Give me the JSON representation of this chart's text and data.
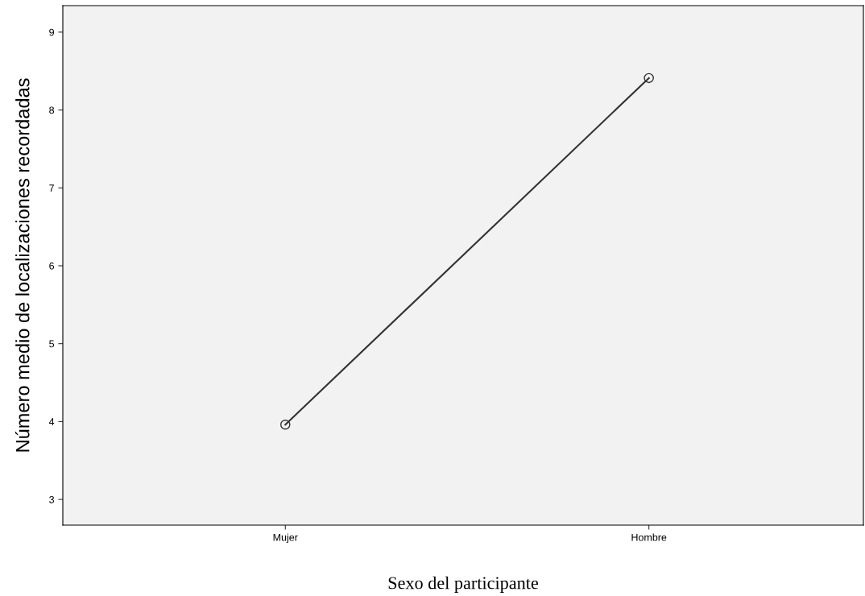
{
  "chart_data": {
    "type": "line",
    "xlabel": "Sexo del participante",
    "ylabel": "Número medio de localizaciones recordadas",
    "categories": [
      "Mujer",
      "Hombre"
    ],
    "series": [
      {
        "color": "#333333",
        "values": [
          3.96,
          8.41
        ]
      }
    ],
    "ylim": [
      2.67,
      9.34
    ],
    "yticks": [
      3,
      4,
      5,
      6,
      7,
      8,
      9
    ],
    "grid": false,
    "marker": "circle",
    "line_style": "solid"
  }
}
